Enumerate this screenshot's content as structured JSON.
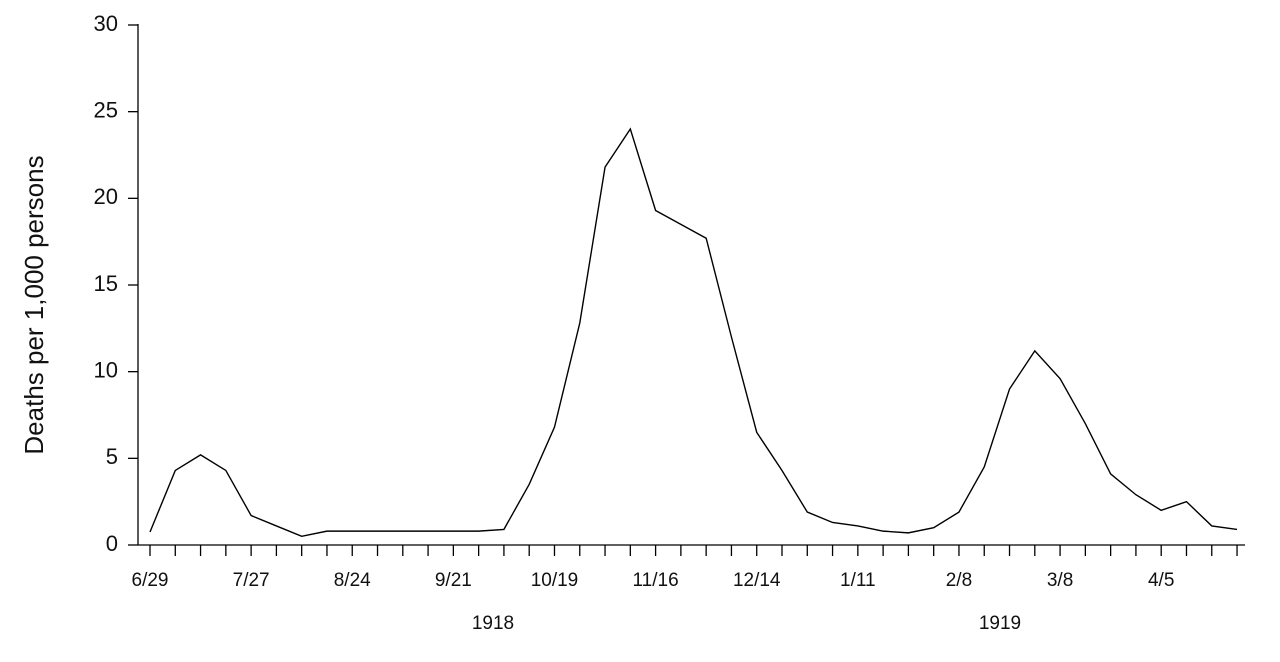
{
  "chart_data": {
    "type": "line",
    "ylabel": "Deaths per 1,000 persons",
    "categories": [
      "6/29",
      null,
      null,
      null,
      "7/27",
      null,
      null,
      null,
      "8/24",
      null,
      null,
      null,
      "9/21",
      null,
      null,
      null,
      "10/19",
      null,
      null,
      null,
      "11/16",
      null,
      null,
      null,
      "12/14",
      null,
      null,
      null,
      "1/11",
      null,
      null,
      null,
      "2/8",
      null,
      null,
      null,
      "3/8",
      null,
      null,
      null,
      "4/5",
      null,
      null,
      null
    ],
    "series": [
      {
        "color": "#000000",
        "values": [
          0.75,
          4.3,
          5.2,
          4.3,
          1.7,
          1.1,
          0.5,
          0.8,
          0.8,
          0.8,
          0.8,
          0.8,
          0.8,
          0.8,
          0.9,
          3.5,
          6.8,
          12.8,
          21.8,
          24.0,
          19.3,
          18.5,
          17.7,
          12.0,
          6.5,
          4.3,
          1.9,
          1.3,
          1.1,
          0.8,
          0.7,
          1.0,
          1.9,
          4.5,
          9.0,
          11.2,
          9.6,
          7.0,
          4.1,
          2.9,
          2.0,
          2.5,
          1.1,
          0.9
        ]
      }
    ],
    "annotations": [
      "1918",
      "1919"
    ],
    "ylim": [
      0,
      30
    ],
    "yticks": [
      0,
      5,
      10,
      15,
      20,
      25,
      30
    ]
  }
}
